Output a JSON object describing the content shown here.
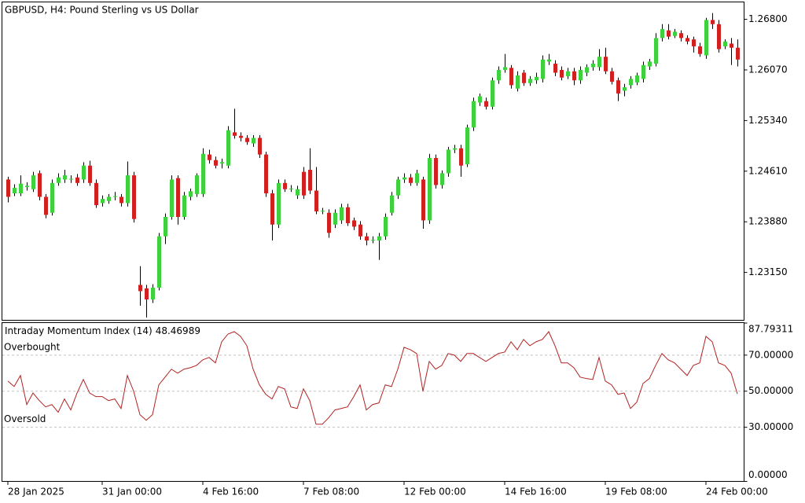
{
  "chart_data": [
    {
      "type": "candlestick",
      "title": "GBPUSD, H4:  Pound Sterling vs US Dollar",
      "up_color": "#3cd23c",
      "down_color": "#d22020",
      "wick_color": "#000000",
      "ylim": [
        1.2246,
        1.2705
      ],
      "yticks": [
        {
          "value": 1.268,
          "label": "1.26800"
        },
        {
          "value": 1.2607,
          "label": "1.26070"
        },
        {
          "value": 1.2534,
          "label": "1.25340"
        },
        {
          "value": 1.2461,
          "label": "1.24610"
        },
        {
          "value": 1.2388,
          "label": "1.23880"
        },
        {
          "value": 1.2315,
          "label": "1.23150"
        }
      ],
      "categories": [
        "28 Jan 2025",
        null,
        null,
        null,
        null,
        null,
        null,
        null,
        null,
        null,
        null,
        null,
        null,
        null,
        null,
        "31 Jan 00:00",
        null,
        null,
        null,
        null,
        null,
        null,
        null,
        null,
        null,
        null,
        null,
        null,
        null,
        null,
        null,
        "4 Feb 16:00",
        null,
        null,
        null,
        null,
        null,
        null,
        null,
        null,
        null,
        null,
        null,
        null,
        null,
        null,
        null,
        "7 Feb 08:00",
        null,
        null,
        null,
        null,
        null,
        null,
        null,
        null,
        null,
        null,
        null,
        null,
        null,
        null,
        null,
        "12 Feb 00:00",
        null,
        null,
        null,
        null,
        null,
        null,
        null,
        null,
        null,
        null,
        null,
        null,
        null,
        null,
        null,
        "14 Feb 16:00",
        null,
        null,
        null,
        null,
        null,
        null,
        null,
        null,
        null,
        null,
        null,
        null,
        null,
        null,
        null,
        "19 Feb 08:00",
        null,
        null,
        null,
        null,
        null,
        null,
        null,
        null,
        null,
        null,
        null,
        null,
        null,
        null,
        null,
        "24 Feb 00:00",
        null,
        null,
        null,
        null,
        null
      ],
      "open": [
        1.2449,
        1.2429,
        1.2429,
        1.2438,
        1.2435,
        1.2458,
        1.2424,
        1.2401,
        1.2444,
        1.2449,
        1.2449,
        1.2452,
        1.2449,
        1.2469,
        1.2444,
        1.2415,
        1.2418,
        1.2424,
        1.2424,
        1.2415,
        1.2455,
        1.2297,
        1.2292,
        1.2276,
        1.2293,
        1.2367,
        1.2395,
        1.2451,
        1.2395,
        1.2424,
        1.2428,
        1.2428,
        1.2485,
        1.2477,
        1.2472,
        1.2469,
        1.2517,
        1.2512,
        1.2509,
        1.2501,
        1.2509,
        1.2485,
        1.2429,
        1.2384,
        1.2444,
        1.2435,
        1.2426,
        1.246,
        1.2463,
        1.2433,
        1.2403,
        1.2401,
        1.2384,
        1.239,
        1.2409,
        1.239,
        1.2384,
        1.2367,
        1.2361,
        1.2361,
        1.2367,
        1.2401,
        1.2426,
        1.2449,
        1.2452,
        1.2444,
        1.2449,
        1.239,
        1.248,
        1.2441,
        1.2458,
        1.2492,
        1.2494,
        1.2471,
        1.2524,
        1.256,
        1.2562,
        1.2554,
        1.2592,
        1.2607,
        1.261,
        1.258,
        1.2603,
        1.2588,
        1.2592,
        1.2594,
        1.2619,
        1.2616,
        1.2607,
        1.2598,
        1.2605,
        1.2592,
        1.2603,
        1.2611,
        1.2611,
        1.2626,
        1.2605,
        1.2592,
        1.2577,
        1.2585,
        1.2589,
        1.2594,
        1.2612,
        1.2616,
        1.2653,
        1.2664,
        1.2656,
        1.266,
        1.2653,
        1.2651,
        1.2641,
        1.2628,
        1.2679,
        1.2673,
        1.2641,
        1.2645,
        1.2639
      ],
      "high": [
        1.2453,
        1.2442,
        1.2455,
        1.2445,
        1.246,
        1.2462,
        1.2428,
        1.2449,
        1.2458,
        1.2463,
        1.2455,
        1.2457,
        1.2474,
        1.2476,
        1.2449,
        1.2426,
        1.2428,
        1.2431,
        1.2428,
        1.2475,
        1.246,
        1.2324,
        1.2297,
        1.2298,
        1.2372,
        1.24,
        1.2455,
        1.2455,
        1.2431,
        1.2436,
        1.2458,
        1.2494,
        1.2492,
        1.2482,
        1.2479,
        1.2526,
        1.2551,
        1.2517,
        1.2513,
        1.2513,
        1.2513,
        1.2489,
        1.2434,
        1.2449,
        1.2449,
        1.2441,
        1.244,
        1.2467,
        1.2494,
        1.2467,
        1.2408,
        1.2406,
        1.2406,
        1.2414,
        1.2414,
        1.2394,
        1.2389,
        1.2372,
        1.2367,
        1.2372,
        1.24,
        1.2431,
        1.2453,
        1.2458,
        1.2457,
        1.2463,
        1.2453,
        1.2486,
        1.2485,
        1.2462,
        1.2496,
        1.2499,
        1.2499,
        1.2528,
        1.2567,
        1.2573,
        1.2567,
        1.2596,
        1.2612,
        1.263,
        1.2614,
        1.2605,
        1.2607,
        1.2598,
        1.2603,
        1.2628,
        1.263,
        1.2621,
        1.2612,
        1.261,
        1.261,
        1.2612,
        1.2615,
        1.2621,
        1.2637,
        1.2639,
        1.261,
        1.2596,
        1.2587,
        1.2598,
        1.2603,
        1.2619,
        1.2623,
        1.266,
        1.2673,
        1.2673,
        1.2666,
        1.2664,
        1.2657,
        1.2655,
        1.2646,
        1.2682,
        1.2689,
        1.2679,
        1.2651,
        1.2653,
        1.2651
      ],
      "low": [
        1.2416,
        1.2425,
        1.2425,
        1.2433,
        1.2431,
        1.2419,
        1.2393,
        1.2397,
        1.244,
        1.2444,
        1.2444,
        1.244,
        1.2444,
        1.244,
        1.2408,
        1.241,
        1.2414,
        1.2419,
        1.241,
        1.241,
        1.2387,
        1.2267,
        1.225,
        1.2271,
        1.2289,
        1.2356,
        1.2391,
        1.2384,
        1.2391,
        1.2419,
        1.2424,
        1.2424,
        1.2472,
        1.2465,
        1.2465,
        1.2465,
        1.2508,
        1.2504,
        1.2499,
        1.2496,
        1.248,
        1.2424,
        1.2361,
        1.2379,
        1.2431,
        1.2431,
        1.2421,
        1.2421,
        1.2428,
        1.2399,
        1.2399,
        1.2365,
        1.2379,
        1.2385,
        1.2382,
        1.2376,
        1.2362,
        1.2354,
        1.2357,
        1.2333,
        1.2362,
        1.2397,
        1.2421,
        1.2444,
        1.244,
        1.244,
        1.2378,
        1.2385,
        1.2436,
        1.2436,
        1.2453,
        1.2487,
        1.2453,
        1.2467,
        1.2519,
        1.2555,
        1.255,
        1.255,
        1.2587,
        1.2603,
        1.258,
        1.2576,
        1.2584,
        1.2584,
        1.2587,
        1.2589,
        1.2614,
        1.2598,
        1.2592,
        1.2594,
        1.2585,
        1.2587,
        1.2598,
        1.2606,
        1.2606,
        1.2601,
        1.2586,
        1.2562,
        1.2569,
        1.258,
        1.2585,
        1.2589,
        1.2607,
        1.2612,
        1.2648,
        1.2651,
        1.2653,
        1.2648,
        1.2644,
        1.2632,
        1.2626,
        1.2623,
        1.2666,
        1.2632,
        1.2637,
        1.2614,
        1.2612
      ],
      "close": [
        1.2424,
        1.2437,
        1.2443,
        1.244,
        1.2455,
        1.2424,
        1.2398,
        1.2444,
        1.2452,
        1.2455,
        1.245,
        1.2444,
        1.2469,
        1.2444,
        1.2412,
        1.2421,
        1.2424,
        1.2425,
        1.2415,
        1.2455,
        1.2392,
        1.2288,
        1.2276,
        1.2293,
        1.2367,
        1.2395,
        1.2449,
        1.2395,
        1.2426,
        1.2432,
        1.2455,
        1.2486,
        1.2477,
        1.2469,
        1.2474,
        1.252,
        1.2512,
        1.2509,
        1.2503,
        1.2509,
        1.2485,
        1.2429,
        1.2384,
        1.2444,
        1.2435,
        1.2436,
        1.2435,
        1.2426,
        1.2433,
        1.2403,
        1.2404,
        1.2372,
        1.2401,
        1.2409,
        1.2386,
        1.2381,
        1.2367,
        1.2361,
        1.2362,
        1.2367,
        1.2395,
        1.2426,
        1.2449,
        1.2452,
        1.2444,
        1.2458,
        1.239,
        1.248,
        1.2441,
        1.2458,
        1.2492,
        1.2494,
        1.2469,
        1.2524,
        1.2562,
        1.2569,
        1.2554,
        1.2592,
        1.2607,
        1.2611,
        1.2585,
        1.2599,
        1.2588,
        1.2594,
        1.2597,
        1.2622,
        1.2622,
        1.2603,
        1.2596,
        1.2605,
        1.2592,
        1.2607,
        1.2611,
        1.2616,
        1.2626,
        1.2605,
        1.259,
        1.2573,
        1.2582,
        1.2594,
        1.2599,
        1.2614,
        1.2619,
        1.2653,
        1.2666,
        1.2655,
        1.2662,
        1.2653,
        1.2648,
        1.2641,
        1.263,
        1.2679,
        1.2673,
        1.2637,
        1.2648,
        1.2639,
        1.2622
      ]
    },
    {
      "type": "line",
      "ylim": [
        0,
        87.79311
      ],
      "yticks": [
        87.79311,
        {
          "value": 70,
          "label": "70.00000"
        },
        {
          "value": 50,
          "label": "50.00000"
        },
        {
          "value": 30,
          "label": "30.00000"
        },
        {
          "value": 0,
          "label": "0.00000"
        }
      ],
      "levels": [
        70,
        50,
        30
      ],
      "level_labels": [
        "Overbought",
        null,
        "Oversold"
      ],
      "series": [
        {
          "name": "Intraday Momentum Index (14)",
          "color": "#b22222",
          "values": [
            55.6,
            52.6,
            58.7,
            42.6,
            49,
            44.8,
            41.3,
            42.6,
            38.3,
            45.7,
            39.6,
            49,
            56.5,
            49,
            47,
            47,
            44.8,
            45.7,
            40.4,
            58.7,
            50,
            37,
            33.9,
            37,
            53.5,
            57.8,
            62.2,
            60,
            62.2,
            63,
            64.3,
            67.4,
            68.7,
            65.7,
            77.4,
            81.7,
            83,
            80.4,
            75.2,
            62.2,
            53.5,
            48.3,
            45.7,
            52.6,
            51.3,
            41.3,
            40.4,
            51.3,
            44.8,
            31.7,
            31.7,
            35.2,
            39.6,
            40.4,
            41.3,
            47,
            53.5,
            39.6,
            42.6,
            43.5,
            53.5,
            52.6,
            62.2,
            74.3,
            73,
            70.9,
            50,
            66.5,
            62.2,
            64.3,
            70.9,
            70,
            66.5,
            70.9,
            70.9,
            68.7,
            66.5,
            68.7,
            70.9,
            71.7,
            77.4,
            73,
            78.7,
            75.2,
            77.4,
            78.7,
            83,
            75.2,
            65.7,
            65.7,
            63,
            57.8,
            57,
            56.5,
            68.7,
            55.6,
            53.5,
            48.3,
            49,
            40.4,
            43.9,
            54.3,
            57,
            64.3,
            70.9,
            67.4,
            65.7,
            62.2,
            58.7,
            64.3,
            65.7,
            80.4,
            77.4,
            65.7,
            64.3,
            60,
            48.46989
          ]
        }
      ]
    }
  ]
}
